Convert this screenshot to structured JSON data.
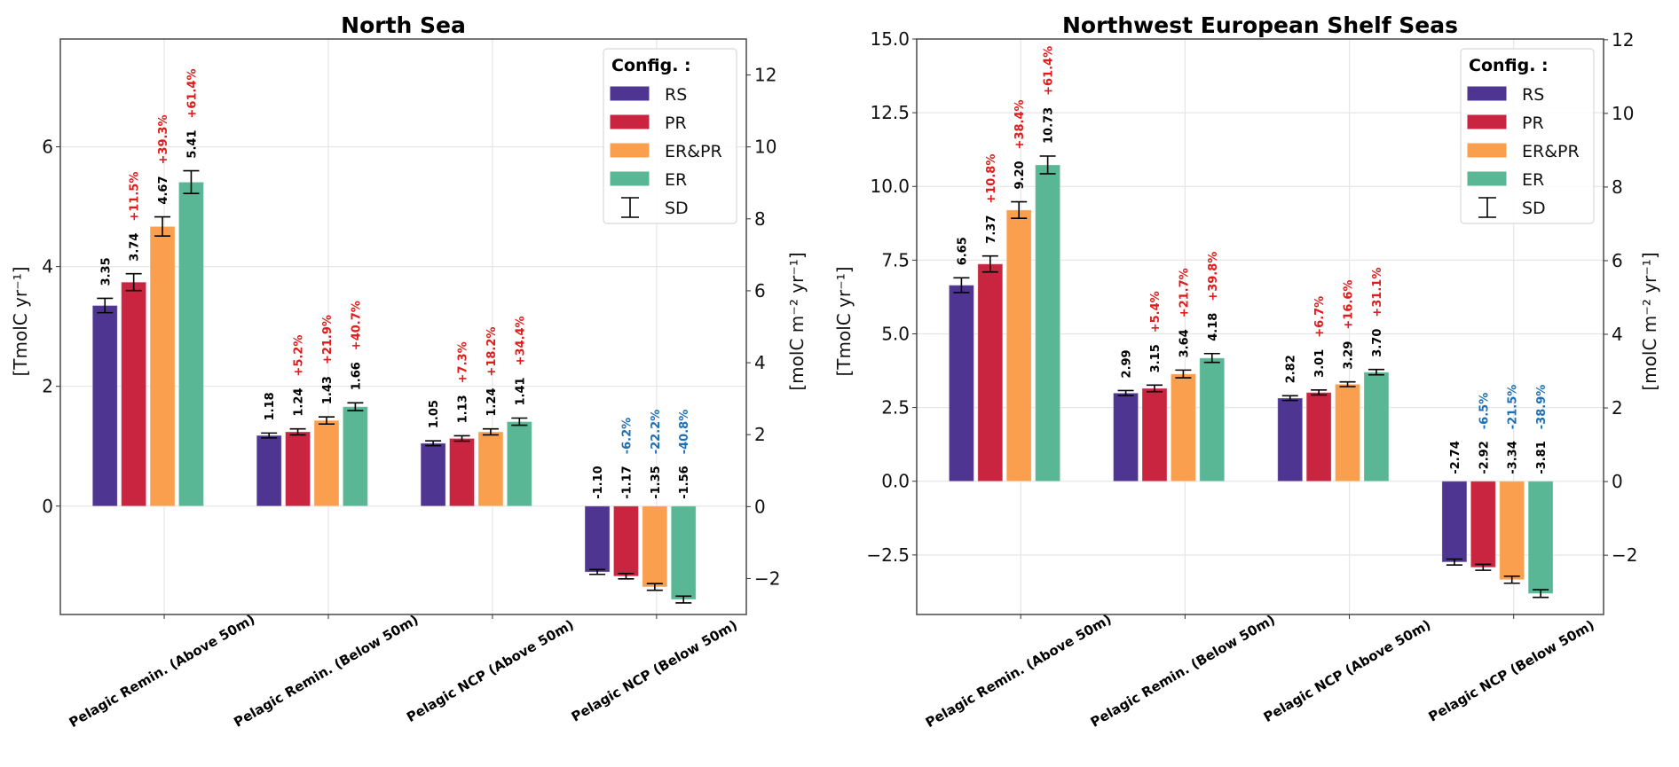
{
  "figure": {
    "panels": 2
  },
  "colors": {
    "RS": "#4e3591",
    "PR": "#c92440",
    "ER&PR": "#f99f4e",
    "ER": "#5ab795",
    "increase_text": "#e01b1b",
    "decrease_text": "#1f6fb5",
    "grid": "#e6e6e6",
    "axis": "#555555"
  },
  "legend": {
    "title": "Config. :",
    "items": [
      {
        "label": "RS",
        "key": "RS",
        "type": "patch"
      },
      {
        "label": "PR",
        "key": "PR",
        "type": "patch"
      },
      {
        "label": "ER&PR",
        "key": "ER&PR",
        "type": "patch"
      },
      {
        "label": "ER",
        "key": "ER",
        "type": "patch"
      },
      {
        "label": "SD",
        "key": "SD",
        "type": "errorbar"
      }
    ],
    "placement": "top-right"
  },
  "chart_data": [
    {
      "type": "bar",
      "title": "North Sea",
      "ylabel": "[TmolC yr⁻¹]",
      "ylabel_right": "[molC m⁻² yr⁻¹]",
      "categories": [
        "Pelagic Remin. (Above 50m)",
        "Pelagic Remin. (Below 50m)",
        "Pelagic NCP (Above 50m)",
        "Pelagic NCP (Below 50m)"
      ],
      "ylim": [
        -1.81,
        7.8
      ],
      "yticks": [
        0,
        2,
        4,
        6
      ],
      "ytick_labels": [
        "0",
        "2",
        "4",
        "6"
      ],
      "ylim_right": [
        -3.0,
        13.0
      ],
      "yticks_right": [
        -2,
        0,
        2,
        4,
        6,
        8,
        10,
        12
      ],
      "ytick_labels_right": [
        "−2",
        "0",
        "2",
        "4",
        "6",
        "8",
        "10",
        "12"
      ],
      "grid": true,
      "legend": "top-right",
      "series": [
        {
          "name": "RS",
          "values": [
            3.35,
            1.18,
            1.05,
            -1.1
          ],
          "sd": [
            0.12,
            0.04,
            0.04,
            0.04
          ],
          "labels": [
            "3.35",
            "1.18",
            "1.05",
            "-1.10"
          ],
          "pct": [
            "",
            "",
            "",
            ""
          ]
        },
        {
          "name": "PR",
          "values": [
            3.74,
            1.24,
            1.13,
            -1.17
          ],
          "sd": [
            0.14,
            0.05,
            0.045,
            0.045
          ],
          "labels": [
            "3.74",
            "1.24",
            "1.13",
            "-1.17"
          ],
          "pct": [
            "+11.5%",
            "+5.2%",
            "+7.3%",
            "-6.2%"
          ]
        },
        {
          "name": "ER&PR",
          "values": [
            4.67,
            1.43,
            1.24,
            -1.35
          ],
          "sd": [
            0.16,
            0.06,
            0.05,
            0.055
          ],
          "labels": [
            "4.67",
            "1.43",
            "1.24",
            "-1.35"
          ],
          "pct": [
            "+39.3%",
            "+21.9%",
            "+18.2%",
            "-22.2%"
          ]
        },
        {
          "name": "ER",
          "values": [
            5.41,
            1.66,
            1.41,
            -1.56
          ],
          "sd": [
            0.19,
            0.065,
            0.06,
            0.057
          ],
          "labels": [
            "5.41",
            "1.66",
            "1.41",
            "-1.56"
          ],
          "pct": [
            "+61.4%",
            "+40.7%",
            "+34.4%",
            "-40.8%"
          ]
        }
      ]
    },
    {
      "type": "bar",
      "title": "Northwest European Shelf Seas",
      "ylabel": "[TmolC yr⁻¹]",
      "ylabel_right": "[molC m⁻² yr⁻¹]",
      "categories": [
        "Pelagic Remin. (Above 50m)",
        "Pelagic Remin. (Below 50m)",
        "Pelagic NCP (Above 50m)",
        "Pelagic NCP (Below 50m)"
      ],
      "ylim": [
        -4.52,
        15.0
      ],
      "yticks": [
        -2.5,
        0.0,
        2.5,
        5.0,
        7.5,
        10.0,
        12.5,
        15.0
      ],
      "ytick_labels": [
        "−2.5",
        "0.0",
        "2.5",
        "5.0",
        "7.5",
        "10.0",
        "12.5",
        "15.0"
      ],
      "ylim_right": [
        -3.61,
        12.02
      ],
      "yticks_right": [
        -2,
        0,
        2,
        4,
        6,
        8,
        10,
        12
      ],
      "ytick_labels_right": [
        "−2",
        "0",
        "2",
        "4",
        "6",
        "8",
        "10",
        "12"
      ],
      "grid": true,
      "legend": "top-right",
      "series": [
        {
          "name": "RS",
          "values": [
            6.65,
            2.99,
            2.82,
            -2.74
          ],
          "sd": [
            0.25,
            0.085,
            0.08,
            0.1
          ],
          "labels": [
            "6.65",
            "2.99",
            "2.82",
            "-2.74"
          ],
          "pct": [
            "",
            "",
            "",
            ""
          ]
        },
        {
          "name": "PR",
          "values": [
            7.37,
            3.15,
            3.01,
            -2.92
          ],
          "sd": [
            0.27,
            0.11,
            0.085,
            0.1
          ],
          "labels": [
            "7.37",
            "3.15",
            "3.01",
            "-2.92"
          ],
          "pct": [
            "+10.8%",
            "+5.4%",
            "+6.7%",
            "-6.5%"
          ]
        },
        {
          "name": "ER&PR",
          "values": [
            9.2,
            3.64,
            3.29,
            -3.34
          ],
          "sd": [
            0.28,
            0.13,
            0.08,
            0.12
          ],
          "labels": [
            "9.20",
            "3.64",
            "3.29",
            "-3.34"
          ],
          "pct": [
            "+38.4%",
            "+21.7%",
            "+16.6%",
            "-21.5%"
          ]
        },
        {
          "name": "ER",
          "values": [
            10.73,
            4.18,
            3.7,
            -3.81
          ],
          "sd": [
            0.3,
            0.15,
            0.09,
            0.13
          ],
          "labels": [
            "10.73",
            "4.18",
            "3.70",
            "-3.81"
          ],
          "pct": [
            "+61.4%",
            "+39.8%",
            "+31.1%",
            "-38.9%"
          ]
        }
      ]
    }
  ]
}
